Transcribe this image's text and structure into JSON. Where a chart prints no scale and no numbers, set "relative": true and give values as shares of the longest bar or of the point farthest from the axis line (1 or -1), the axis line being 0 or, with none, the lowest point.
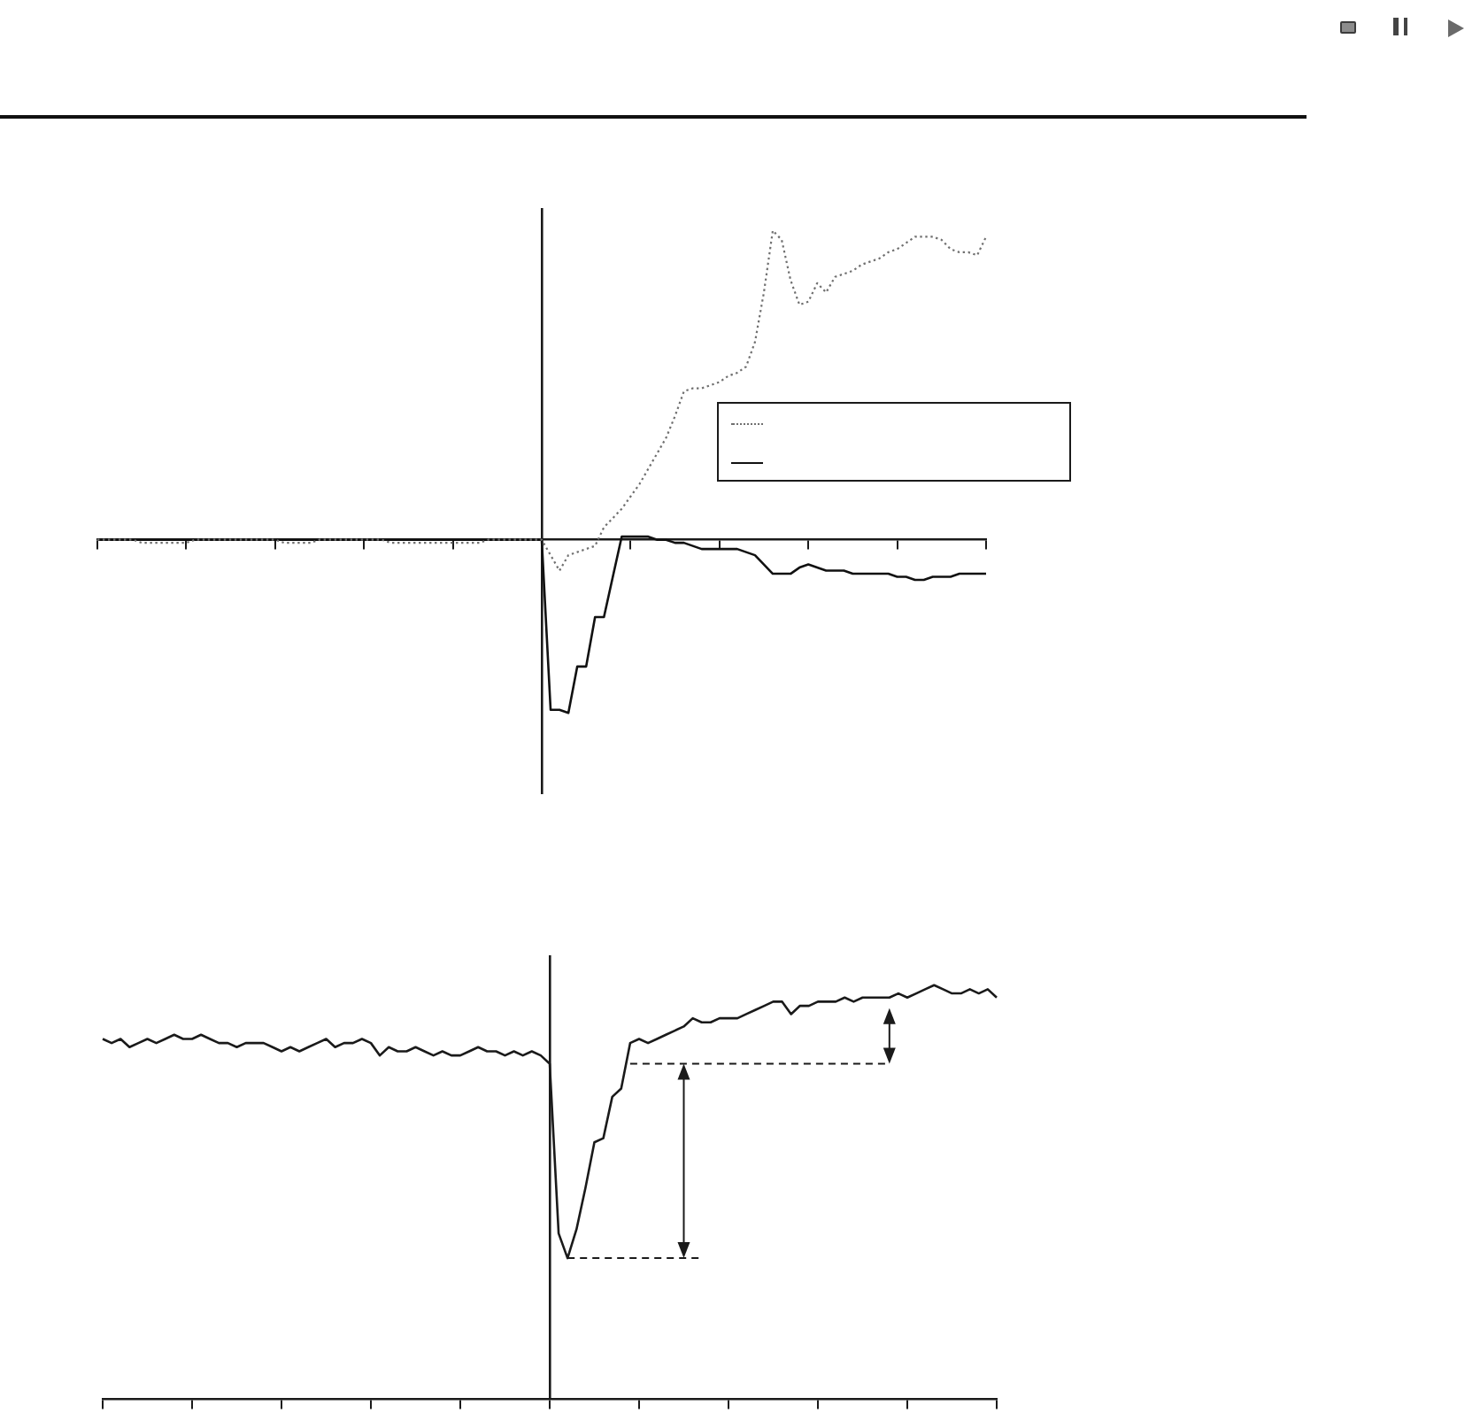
{
  "chart_data": [
    {
      "type": "line",
      "relative": true,
      "marker": "none",
      "categories": [
        null,
        null,
        null,
        null,
        null,
        null,
        null,
        null,
        null,
        null,
        null,
        null,
        null,
        null,
        null,
        null,
        null,
        null,
        null,
        null,
        null,
        null,
        null,
        null,
        null,
        null,
        null,
        null,
        null,
        null,
        null,
        null,
        null,
        null,
        null,
        null,
        null,
        null,
        null,
        null,
        null,
        null,
        null,
        null,
        null,
        null,
        null,
        null,
        null,
        null,
        null,
        null,
        null,
        null,
        null,
        null,
        null,
        null,
        null,
        null,
        null,
        null,
        null,
        null,
        null,
        null,
        null,
        null,
        null,
        null,
        null,
        null,
        null,
        null,
        null,
        null,
        null,
        null,
        null,
        null,
        null,
        null,
        null,
        null,
        null,
        null,
        null,
        null,
        null,
        null,
        null,
        null,
        null,
        null,
        null,
        null,
        null,
        null,
        null,
        null,
        null
      ],
      "series": [
        {
          "color": "#707070",
          "line_style": "dotted",
          "values": [
            0,
            0,
            0,
            0,
            0,
            -0.01,
            -0.01,
            -0.01,
            -0.01,
            -0.01,
            -0.01,
            0,
            0,
            0,
            0,
            0,
            0,
            0,
            0,
            0,
            0,
            -0.01,
            -0.01,
            -0.01,
            -0.01,
            0,
            0,
            0,
            0,
            0,
            0,
            0,
            0,
            -0.01,
            -0.01,
            -0.01,
            -0.01,
            -0.01,
            -0.01,
            -0.01,
            -0.01,
            -0.01,
            -0.01,
            -0.01,
            0,
            0,
            0,
            0,
            0,
            0,
            0,
            -0.05,
            -0.1,
            -0.05,
            -0.04,
            -0.03,
            -0.02,
            0.04,
            0.07,
            0.1,
            0.14,
            0.18,
            0.23,
            0.28,
            0.33,
            0.4,
            0.48,
            0.49,
            0.49,
            0.5,
            0.51,
            0.53,
            0.54,
            0.56,
            0.64,
            0.8,
            1,
            0.97,
            0.84,
            0.76,
            0.77,
            0.83,
            0.8,
            0.85,
            0.86,
            0.87,
            0.89,
            0.9,
            0.91,
            0.93,
            0.94,
            0.96,
            0.98,
            0.98,
            0.98,
            0.97,
            0.94,
            0.93,
            0.93,
            0.92,
            0.98
          ]
        },
        {
          "color": "#111111",
          "line_style": "solid",
          "values": [
            0,
            0,
            0,
            0,
            0,
            0,
            0,
            0,
            0,
            0,
            0,
            0,
            0,
            0,
            0,
            0,
            0,
            0,
            0,
            0,
            0,
            0,
            0,
            0,
            0,
            0,
            0,
            0,
            0,
            0,
            0,
            0,
            0,
            0,
            0,
            0,
            0,
            0,
            0,
            0,
            0,
            0,
            0,
            0,
            0,
            0,
            0,
            0,
            0,
            0,
            0,
            -0.55,
            -0.55,
            -0.56,
            -0.41,
            -0.41,
            -0.25,
            -0.25,
            -0.12,
            0.01,
            0.01,
            0.01,
            0.01,
            0,
            0,
            -0.01,
            -0.01,
            -0.02,
            -0.03,
            -0.03,
            -0.03,
            -0.03,
            -0.03,
            -0.04,
            -0.05,
            -0.08,
            -0.11,
            -0.11,
            -0.11,
            -0.09,
            -0.08,
            -0.09,
            -0.1,
            -0.1,
            -0.1,
            -0.11,
            -0.11,
            -0.11,
            -0.11,
            -0.11,
            -0.12,
            -0.12,
            -0.13,
            -0.13,
            -0.12,
            -0.12,
            -0.12,
            -0.11,
            -0.11,
            -0.11,
            -0.11
          ]
        }
      ]
    },
    {
      "type": "line",
      "relative": true,
      "marker": "none",
      "categories": [
        null,
        null,
        null,
        null,
        null,
        null,
        null,
        null,
        null,
        null,
        null,
        null,
        null,
        null,
        null,
        null,
        null,
        null,
        null,
        null,
        null,
        null,
        null,
        null,
        null,
        null,
        null,
        null,
        null,
        null,
        null,
        null,
        null,
        null,
        null,
        null,
        null,
        null,
        null,
        null,
        null,
        null,
        null,
        null,
        null,
        null,
        null,
        null,
        null,
        null,
        null,
        null,
        null,
        null,
        null,
        null,
        null,
        null,
        null,
        null,
        null,
        null,
        null,
        null,
        null,
        null,
        null,
        null,
        null,
        null,
        null,
        null,
        null,
        null,
        null,
        null,
        null,
        null,
        null,
        null,
        null,
        null,
        null,
        null,
        null,
        null,
        null,
        null,
        null,
        null,
        null,
        null,
        null,
        null,
        null,
        null,
        null,
        null,
        null,
        null,
        null
      ],
      "series": [
        {
          "color": "#1a1a1a",
          "values": [
            0.87,
            0.86,
            0.87,
            0.85,
            0.86,
            0.87,
            0.86,
            0.87,
            0.88,
            0.87,
            0.87,
            0.88,
            0.87,
            0.86,
            0.86,
            0.85,
            0.86,
            0.86,
            0.86,
            0.85,
            0.84,
            0.85,
            0.84,
            0.85,
            0.86,
            0.87,
            0.85,
            0.86,
            0.86,
            0.87,
            0.86,
            0.83,
            0.85,
            0.84,
            0.84,
            0.85,
            0.84,
            0.83,
            0.84,
            0.83,
            0.83,
            0.84,
            0.85,
            0.84,
            0.84,
            0.83,
            0.84,
            0.83,
            0.84,
            0.83,
            0.81,
            0.4,
            0.34,
            0.41,
            0.51,
            0.62,
            0.63,
            0.73,
            0.75,
            0.86,
            0.87,
            0.86,
            0.87,
            0.88,
            0.89,
            0.9,
            0.92,
            0.91,
            0.91,
            0.92,
            0.92,
            0.92,
            0.93,
            0.94,
            0.95,
            0.96,
            0.96,
            0.93,
            0.95,
            0.95,
            0.96,
            0.96,
            0.96,
            0.97,
            0.96,
            0.97,
            0.97,
            0.97,
            0.97,
            0.98,
            0.97,
            0.98,
            0.99,
            1,
            0.99,
            0.98,
            0.98,
            0.99,
            0.98,
            0.99,
            0.97
          ]
        }
      ],
      "ref_lines": [
        {
          "axis": "y",
          "value": 0.34,
          "line_style": "dashed"
        },
        {
          "axis": "y",
          "value": 0.81,
          "line_style": "dashed"
        }
      ]
    }
  ]
}
